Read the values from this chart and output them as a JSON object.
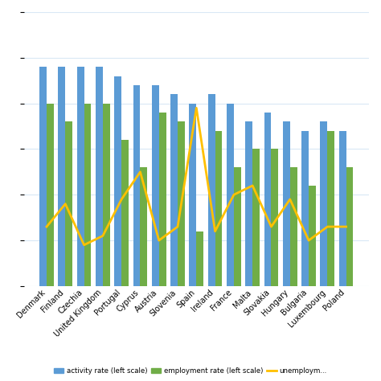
{
  "countries": [
    "Denmark",
    "Finland",
    "Czechia",
    "United Kingdom",
    "Portugal",
    "Cyprus",
    "Austria",
    "Slovenia",
    "Spain",
    "Ireland",
    "France",
    "Malta",
    "Slovakia",
    "Hungary",
    "Bulgaria",
    "Luxembourg",
    "Poland"
  ],
  "activity_rate": [
    79,
    79,
    79,
    79,
    78,
    77,
    77,
    76,
    75,
    76,
    75,
    73,
    74,
    73,
    72,
    73,
    72
  ],
  "employment_rate": [
    75,
    73,
    75,
    75,
    71,
    68,
    74,
    73,
    61,
    72,
    68,
    70,
    70,
    68,
    66,
    72,
    68
  ],
  "unemployment_rate": [
    6.5,
    9.0,
    4.5,
    5.5,
    9.5,
    12.5,
    5.0,
    6.5,
    19.5,
    6.0,
    10.0,
    11.0,
    6.5,
    9.5,
    5.0,
    6.5,
    6.5
  ],
  "bar_color_blue": "#5B9BD5",
  "bar_color_green": "#70AD47",
  "line_color": "#FFC000",
  "background_color": "#FFFFFF",
  "grid_color": "#D9E8F5",
  "legend_labels": [
    "activity rate (left scale)",
    "employment rate (left scale)",
    "unemploym..."
  ],
  "ylim_left": [
    55,
    85
  ],
  "ylim_right": [
    0,
    30
  ],
  "bar_width": 0.38
}
